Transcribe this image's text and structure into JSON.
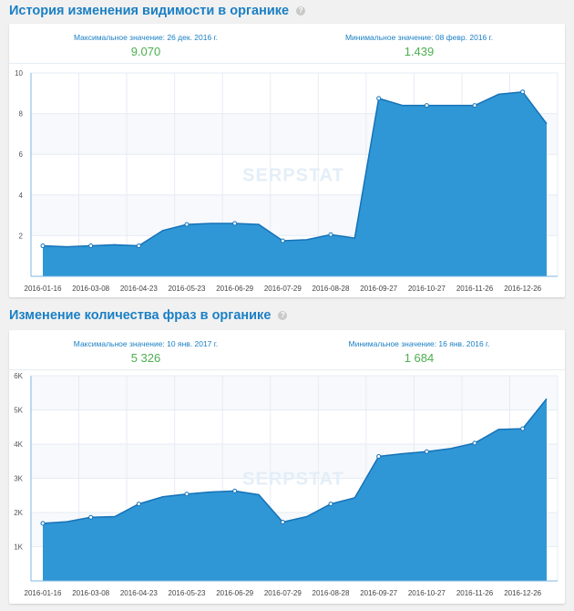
{
  "colors": {
    "accent": "#1a7fc4",
    "area": "#2f97d5",
    "value": "#4caf50"
  },
  "watermark": "SERPSTAT",
  "panels": [
    {
      "title": "История изменения видимости в органике",
      "help_icon": "?",
      "max_label": "Максимальное значение: 26 дек. 2016 г.",
      "max_value": "9.070",
      "min_label": "Минимальное значение: 08 февр. 2016 г.",
      "min_value": "1.439"
    },
    {
      "title": "Изменение количества фраз в органике",
      "help_icon": "?",
      "max_label": "Максимальное значение: 10 янв. 2017 г.",
      "max_value": "5 326",
      "min_label": "Минимальное значение: 16 янв. 2016 г.",
      "min_value": "1 684"
    }
  ],
  "chart_data": [
    {
      "type": "area",
      "title": "История изменения видимости в органике",
      "x_tick_labels": [
        "2016-01-16",
        "2016-03-08",
        "2016-04-23",
        "2016-05-23",
        "2016-06-29",
        "2016-07-29",
        "2016-08-28",
        "2016-09-27",
        "2016-10-27",
        "2016-11-26",
        "2016-12-26"
      ],
      "y_ticks": [
        2,
        4,
        6,
        8,
        10
      ],
      "y_tick_labels": [
        "2",
        "4",
        "6",
        "8",
        "10"
      ],
      "ylim": [
        0,
        10
      ],
      "values": [
        1.5,
        1.45,
        1.5,
        1.55,
        1.5,
        2.25,
        2.55,
        2.6,
        2.6,
        2.55,
        1.75,
        1.8,
        2.05,
        1.88,
        8.75,
        8.4,
        8.4,
        8.4,
        8.4,
        8.95,
        9.07,
        7.5
      ],
      "grid": true
    },
    {
      "type": "area",
      "title": "Изменение количества фраз в органике",
      "x_tick_labels": [
        "2016-01-16",
        "2016-03-08",
        "2016-04-23",
        "2016-05-23",
        "2016-06-29",
        "2016-07-29",
        "2016-08-28",
        "2016-09-27",
        "2016-10-27",
        "2016-11-26",
        "2016-12-26"
      ],
      "y_ticks": [
        1000,
        2000,
        3000,
        4000,
        5000,
        6000
      ],
      "y_tick_labels": [
        "1K",
        "2K",
        "3K",
        "4K",
        "5K",
        "6K"
      ],
      "ylim": [
        0,
        6000
      ],
      "values": [
        1684,
        1730,
        1860,
        1880,
        2250,
        2460,
        2540,
        2600,
        2630,
        2520,
        1720,
        1880,
        2250,
        2430,
        3640,
        3720,
        3780,
        3870,
        4030,
        4430,
        4450,
        5326
      ],
      "grid": true
    }
  ]
}
